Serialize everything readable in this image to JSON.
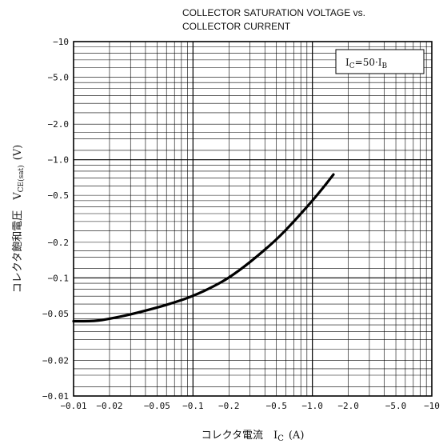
{
  "chart_data": {
    "type": "line",
    "title_lines": [
      "COLLECTOR SATURATION VOLTAGE vs.",
      "COLLECTOR CURRENT"
    ],
    "xlabel": "コレクタ電流　I",
    "xlabel_sub": "C",
    "xlabel_unit": "(A)",
    "ylabel": "コレクタ飽和電圧　V",
    "ylabel_sub": "CE(sat)",
    "ylabel_unit": "(V)",
    "legend": {
      "text": "I",
      "sub_1": "C",
      "mid": "=50·I",
      "sub_2": "B",
      "position": "top-right"
    },
    "x_scale": "log",
    "y_scale": "log",
    "xlim": [
      -0.01,
      -10
    ],
    "ylim": [
      -0.01,
      -10
    ],
    "x_ticks": [
      {
        "value": -0.01,
        "label": "−0.01"
      },
      {
        "value": -0.02,
        "label": "−0.02"
      },
      {
        "value": -0.05,
        "label": "−0.05"
      },
      {
        "value": -0.1,
        "label": "−0.1"
      },
      {
        "value": -0.2,
        "label": "−0.2"
      },
      {
        "value": -0.5,
        "label": "−0.5"
      },
      {
        "value": -1.0,
        "label": "−1.0"
      },
      {
        "value": -2.0,
        "label": "−2.0"
      },
      {
        "value": -5.0,
        "label": "−5.0"
      },
      {
        "value": -10,
        "label": "−10"
      }
    ],
    "y_ticks": [
      {
        "value": -0.01,
        "label": "−0.01"
      },
      {
        "value": -0.02,
        "label": "−0.02"
      },
      {
        "value": -0.05,
        "label": "−0.05"
      },
      {
        "value": -0.1,
        "label": "−0.1"
      },
      {
        "value": -0.2,
        "label": "−0.2"
      },
      {
        "value": -0.5,
        "label": "−0.5"
      },
      {
        "value": -1.0,
        "label": "−1.0"
      },
      {
        "value": -2.0,
        "label": "−2.0"
      },
      {
        "value": -5.0,
        "label": "−5.0"
      },
      {
        "value": -10,
        "label": "−10"
      }
    ],
    "grid": true,
    "series": [
      {
        "color": "#000000",
        "points": [
          {
            "x": -0.01,
            "y": -0.043
          },
          {
            "x": -0.015,
            "y": -0.043
          },
          {
            "x": -0.02,
            "y": -0.045
          },
          {
            "x": -0.03,
            "y": -0.049
          },
          {
            "x": -0.05,
            "y": -0.056
          },
          {
            "x": -0.07,
            "y": -0.062
          },
          {
            "x": -0.1,
            "y": -0.07
          },
          {
            "x": -0.15,
            "y": -0.085
          },
          {
            "x": -0.2,
            "y": -0.1
          },
          {
            "x": -0.3,
            "y": -0.135
          },
          {
            "x": -0.5,
            "y": -0.21
          },
          {
            "x": -0.7,
            "y": -0.3
          },
          {
            "x": -1.0,
            "y": -0.45
          },
          {
            "x": -1.3,
            "y": -0.62
          },
          {
            "x": -1.5,
            "y": -0.75
          }
        ]
      }
    ]
  }
}
